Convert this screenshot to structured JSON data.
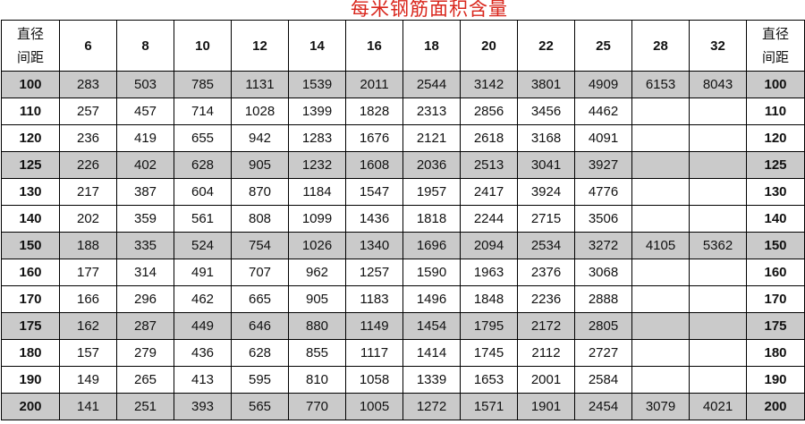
{
  "title": "每米钢筋面积含量",
  "header": {
    "corner": [
      "直径",
      "间距"
    ],
    "columns": [
      "6",
      "8",
      "10",
      "12",
      "14",
      "16",
      "18",
      "20",
      "22",
      "25",
      "28",
      "32"
    ]
  },
  "rows": [
    {
      "spacing": 100,
      "shaded": true,
      "cells": [
        283,
        503,
        785,
        1131,
        1539,
        2011,
        2544,
        3142,
        3801,
        4909,
        6153,
        8043
      ]
    },
    {
      "spacing": 110,
      "shaded": false,
      "cells": [
        257,
        457,
        714,
        1028,
        1399,
        1828,
        2313,
        2856,
        3456,
        4462,
        null,
        null
      ]
    },
    {
      "spacing": 120,
      "shaded": false,
      "cells": [
        236,
        419,
        655,
        942,
        1283,
        1676,
        2121,
        2618,
        3168,
        4091,
        null,
        null
      ]
    },
    {
      "spacing": 125,
      "shaded": true,
      "cells": [
        226,
        402,
        628,
        905,
        1232,
        1608,
        2036,
        2513,
        3041,
        3927,
        null,
        null
      ]
    },
    {
      "spacing": 130,
      "shaded": false,
      "cells": [
        217,
        387,
        604,
        870,
        1184,
        1547,
        1957,
        2417,
        3924,
        4776,
        null,
        null
      ]
    },
    {
      "spacing": 140,
      "shaded": false,
      "cells": [
        202,
        359,
        561,
        808,
        1099,
        1436,
        1818,
        2244,
        2715,
        3506,
        null,
        null
      ]
    },
    {
      "spacing": 150,
      "shaded": true,
      "cells": [
        188,
        335,
        524,
        754,
        1026,
        1340,
        1696,
        2094,
        2534,
        3272,
        4105,
        5362
      ]
    },
    {
      "spacing": 160,
      "shaded": false,
      "cells": [
        177,
        314,
        491,
        707,
        962,
        1257,
        1590,
        1963,
        2376,
        3068,
        null,
        null
      ]
    },
    {
      "spacing": 170,
      "shaded": false,
      "cells": [
        166,
        296,
        462,
        665,
        905,
        1183,
        1496,
        1848,
        2236,
        2888,
        null,
        null
      ]
    },
    {
      "spacing": 175,
      "shaded": true,
      "cells": [
        162,
        287,
        449,
        646,
        880,
        1149,
        1454,
        1795,
        2172,
        2805,
        null,
        null
      ]
    },
    {
      "spacing": 180,
      "shaded": false,
      "cells": [
        157,
        279,
        436,
        628,
        855,
        1117,
        1414,
        1745,
        2112,
        2727,
        null,
        null
      ]
    },
    {
      "spacing": 190,
      "shaded": false,
      "cells": [
        149,
        265,
        413,
        595,
        810,
        1058,
        1339,
        1653,
        2001,
        2584,
        null,
        null
      ]
    },
    {
      "spacing": 200,
      "shaded": true,
      "cells": [
        141,
        251,
        393,
        565,
        770,
        1005,
        1272,
        1571,
        1901,
        2454,
        3079,
        4021
      ]
    }
  ]
}
